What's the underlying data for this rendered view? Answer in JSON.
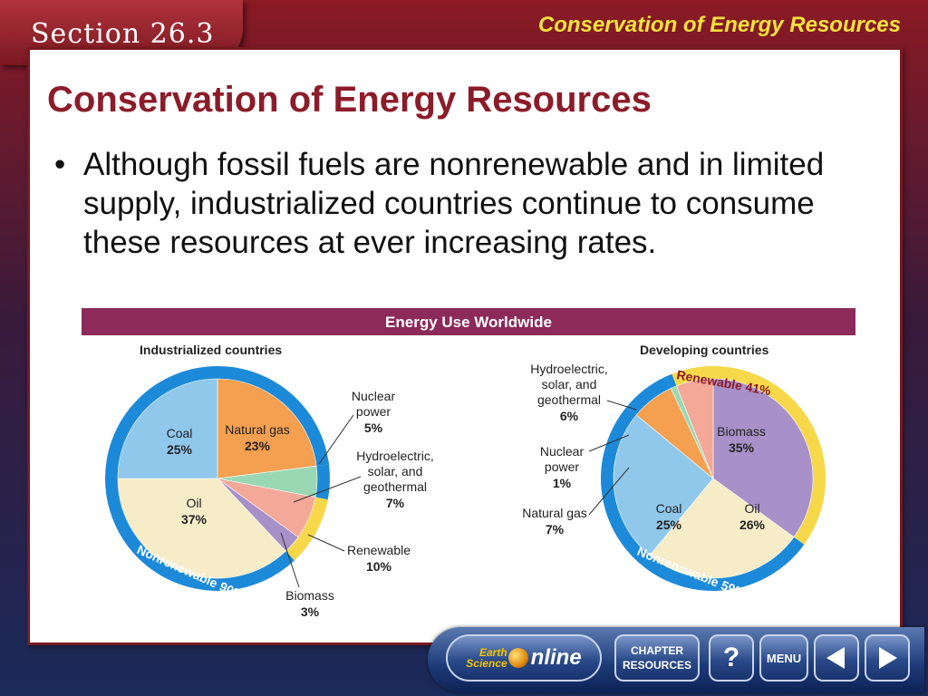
{
  "header": {
    "section_label": "Section 26.3",
    "title": "Conservation of Energy Resources"
  },
  "slide": {
    "title": "Conservation of Energy Resources",
    "bullet": "Although fossil fuels are nonrenewable and in limited supply, industrialized countries continue to consume these resources at ever increasing rates."
  },
  "chart_title": "Energy Use Worldwide",
  "chart_data": [
    {
      "type": "pie",
      "title": "Industrialized countries",
      "slices": [
        {
          "label": "Natural gas",
          "value": 23,
          "color": "#f4a050"
        },
        {
          "label": "Nuclear power",
          "value": 5,
          "color": "#9ad8b4"
        },
        {
          "label": "Hydroelectric, solar, and geothermal",
          "value": 7,
          "color": "#f4a898"
        },
        {
          "label": "Biomass",
          "value": 3,
          "color": "#a890c8"
        },
        {
          "label": "Oil",
          "value": 37,
          "color": "#f6ecc8"
        },
        {
          "label": "Coal",
          "value": 25,
          "color": "#90c8ec"
        }
      ],
      "groups": [
        {
          "label": "Nonrenewable",
          "value": 90
        },
        {
          "label": "Renewable",
          "value": 10
        }
      ]
    },
    {
      "type": "pie",
      "title": "Developing countries",
      "slices": [
        {
          "label": "Biomass",
          "value": 35,
          "color": "#a890c8"
        },
        {
          "label": "Oil",
          "value": 26,
          "color": "#f6ecc8"
        },
        {
          "label": "Coal",
          "value": 25,
          "color": "#90c8ec"
        },
        {
          "label": "Natural gas",
          "value": 7,
          "color": "#f4a050"
        },
        {
          "label": "Nuclear power",
          "value": 1,
          "color": "#9ad8b4"
        },
        {
          "label": "Hydroelectric, solar, and geothermal",
          "value": 6,
          "color": "#f4a898"
        }
      ],
      "groups": [
        {
          "label": "Renewable",
          "value": 41
        },
        {
          "label": "Nonrenewable",
          "value": 59
        }
      ]
    }
  ],
  "labels": {
    "ind_coal": "Coal",
    "ind_coal_pct": "25%",
    "ind_gas": "Natural gas",
    "ind_gas_pct": "23%",
    "ind_oil": "Oil",
    "ind_oil_pct": "37%",
    "ind_nuc_1": "Nuclear",
    "ind_nuc_2": "power",
    "ind_nuc_pct": "5%",
    "ind_hyd_1": "Hydroelectric,",
    "ind_hyd_2": "solar, and",
    "ind_hyd_3": "geothermal",
    "ind_hyd_pct": "7%",
    "ind_ren": "Renewable",
    "ind_ren_pct": "10%",
    "ind_bio": "Biomass",
    "ind_bio_pct": "3%",
    "ind_nonren": "Nonrenewable",
    "ind_nonren_pct": "90%",
    "dev_hyd_1": "Hydroelectric,",
    "dev_hyd_2": "solar, and",
    "dev_hyd_3": "geothermal",
    "dev_hyd_pct": "6%",
    "dev_nuc_1": "Nuclear",
    "dev_nuc_2": "power",
    "dev_nuc_pct": "1%",
    "dev_gas": "Natural gas",
    "dev_gas_pct": "7%",
    "dev_bio": "Biomass",
    "dev_bio_pct": "35%",
    "dev_coal": "Coal",
    "dev_coal_pct": "25%",
    "dev_oil": "Oil",
    "dev_oil_pct": "26%",
    "dev_ren": "Renewable",
    "dev_ren_pct": "41%",
    "dev_nonren": "Nonrenewable",
    "dev_nonren_pct": "59%"
  },
  "nav": {
    "earth_line1": "Earth",
    "earth_line2": "Science",
    "earth_online": "nline",
    "chapter_line1": "CHAPTER",
    "chapter_line2": "RESOURCES",
    "help": "?",
    "menu": "MENU"
  },
  "colors": {
    "banner": "#8c2a5a",
    "ring_blue": "#1c8ad8",
    "ring_yellow": "#f6d84a",
    "title_red": "#8c1c2a",
    "header_yellow": "#f6e23c"
  }
}
